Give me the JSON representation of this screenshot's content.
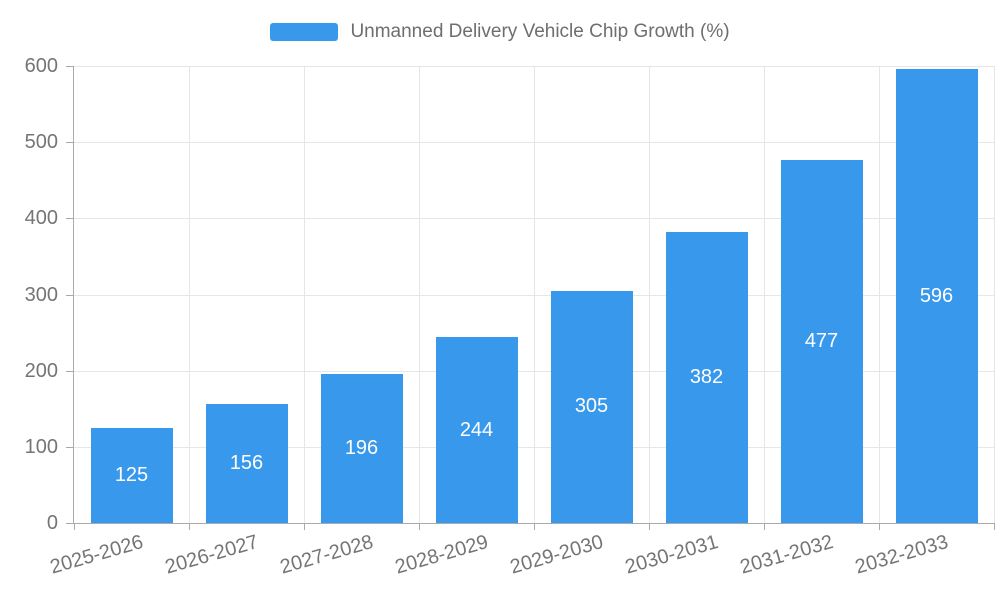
{
  "legend": {
    "label": "Unmanned Delivery Vehicle Chip Growth (%)"
  },
  "colors": {
    "bar": "#3898ec",
    "bar_label": "#ffffff",
    "axis": "#aaaaaa",
    "grid": "#e6e6e6",
    "tick_text": "#757575",
    "legend_text": "#6e6e6e"
  },
  "chart_data": {
    "type": "bar",
    "title": "Unmanned Delivery Vehicle Chip Growth (%)",
    "categories": [
      "2025-2026",
      "2026-2027",
      "2027-2028",
      "2028-2029",
      "2029-2030",
      "2030-2031",
      "2031-2032",
      "2032-2033"
    ],
    "values": [
      125,
      156,
      196,
      244,
      305,
      382,
      477,
      596
    ],
    "xlabel": "",
    "ylabel": "",
    "ylim": [
      0,
      600
    ],
    "ytick_step": 100,
    "yticks": [
      0,
      100,
      200,
      300,
      400,
      500,
      600
    ],
    "grid": true,
    "legend_position": "top-center",
    "bar_labels": "inside-center",
    "xtick_rotation_deg": -16
  }
}
